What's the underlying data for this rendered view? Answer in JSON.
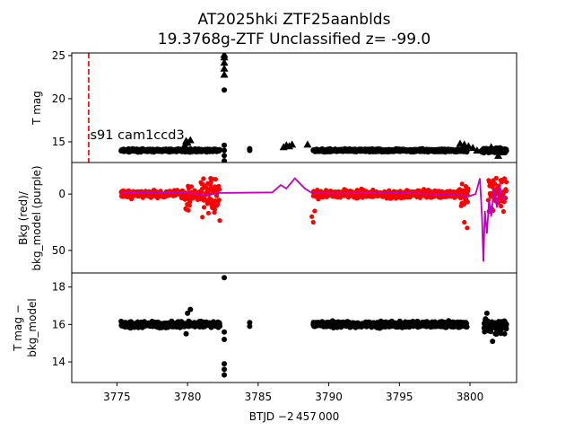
{
  "chart_data": {
    "type": "scatter",
    "title_line1": "AT2025hki  ZTF25aanblds",
    "title_line2": "19.3768g-ZTF Unclassified z= -99.0",
    "xlabel": "BTJD −2 457 000",
    "xlim": [
      3771.8,
      3803.3
    ],
    "xticks": [
      3775,
      3780,
      3785,
      3790,
      3795,
      3800
    ],
    "panels": [
      {
        "id": "tmag",
        "ylabel": "T mag",
        "ylim": [
          25.3,
          12.6
        ],
        "yticks": [
          15,
          20,
          25
        ],
        "annotation": {
          "text": "s91 cam1ccd3",
          "x": 3773.1,
          "y": 15.3
        },
        "vline": {
          "x": 3773.0,
          "color": "#e00000"
        },
        "band_segments": [
          {
            "x0": 3775.3,
            "x1": 3782.3,
            "y": 14.0,
            "spread": 0.22
          },
          {
            "x0": 3788.9,
            "x1": 3799.8,
            "y": 14.0,
            "spread": 0.22
          },
          {
            "x0": 3800.8,
            "x1": 3802.6,
            "y": 14.0,
            "spread": 0.35
          }
        ],
        "points": [
          [
            3779.8,
            14.6
          ],
          [
            3780.0,
            14.9
          ],
          [
            3780.2,
            15.2
          ],
          [
            3779.9,
            15.1
          ],
          [
            3782.6,
            11.8
          ],
          [
            3782.6,
            12.3
          ],
          [
            3782.6,
            12.8
          ],
          [
            3782.6,
            13.4
          ],
          [
            3782.6,
            14.0
          ],
          [
            3782.6,
            14.6
          ],
          [
            3782.6,
            21.0
          ],
          [
            3782.6,
            22.8
          ],
          [
            3782.6,
            23.5
          ],
          [
            3782.6,
            24.2
          ],
          [
            3782.6,
            24.8
          ],
          [
            3782.6,
            25.1
          ],
          [
            3784.4,
            14.0
          ],
          [
            3784.4,
            14.2
          ],
          [
            3786.8,
            14.4
          ],
          [
            3787.0,
            14.6
          ],
          [
            3787.2,
            14.5
          ],
          [
            3787.4,
            14.7
          ],
          [
            3788.5,
            14.7
          ],
          [
            3799.3,
            14.8
          ],
          [
            3799.6,
            14.7
          ],
          [
            3799.9,
            14.5
          ],
          [
            3800.2,
            14.3
          ],
          [
            3800.5,
            14.0
          ],
          [
            3801.5,
            14.4
          ],
          [
            3802.0,
            13.4
          ],
          [
            3802.3,
            13.8
          ]
        ],
        "marker_color": "#000000"
      },
      {
        "id": "bkg",
        "ylabel_line1": "Bkg (red)/",
        "ylabel_line2": "bkg_model (purple)",
        "ylim": [
          -28,
          70
        ],
        "yticks": [
          0,
          50
        ],
        "bkg_segments": [
          {
            "x0": 3775.3,
            "x1": 3779.8,
            "y": 0,
            "spread": 5
          },
          {
            "x0": 3779.8,
            "x1": 3780.3,
            "y": 0,
            "spread": 26
          },
          {
            "x0": 3780.3,
            "x1": 3780.9,
            "y": 0,
            "spread": 7
          },
          {
            "x0": 3780.9,
            "x1": 3782.3,
            "y": 0,
            "spread": 26
          },
          {
            "x0": 3788.9,
            "x1": 3799.2,
            "y": 0,
            "spread": 5
          },
          {
            "x0": 3799.2,
            "x1": 3799.9,
            "y": 0,
            "spread": 14
          },
          {
            "x0": 3801.3,
            "x1": 3802.6,
            "y": 0,
            "spread": 25
          }
        ],
        "bkg_points": [
          [
            3788.8,
            20
          ],
          [
            3788.9,
            25
          ],
          [
            3789.0,
            15
          ],
          [
            3799.6,
            25
          ],
          [
            3799.8,
            30
          ]
        ],
        "bkg_color": "#ff0000",
        "model_line": [
          [
            3775.3,
            -1
          ],
          [
            3776.5,
            -1.5
          ],
          [
            3778.0,
            -1
          ],
          [
            3779.5,
            -1.5
          ],
          [
            3780.5,
            -0.5
          ],
          [
            3781.0,
            1
          ],
          [
            3781.5,
            0.5
          ],
          [
            3782.3,
            -1
          ],
          [
            3786.0,
            -1.5
          ],
          [
            3786.6,
            -8
          ],
          [
            3787.0,
            -5
          ],
          [
            3787.6,
            -14
          ],
          [
            3788.3,
            -5
          ],
          [
            3788.8,
            -1
          ],
          [
            3790.0,
            -0.5
          ],
          [
            3795.0,
            -1
          ],
          [
            3798.0,
            0
          ],
          [
            3799.4,
            1
          ],
          [
            3799.9,
            2
          ],
          [
            3800.4,
            0
          ],
          [
            3800.7,
            -14
          ],
          [
            3800.85,
            20
          ],
          [
            3800.95,
            60
          ],
          [
            3801.05,
            15
          ],
          [
            3801.2,
            35
          ],
          [
            3801.35,
            5
          ],
          [
            3801.5,
            20
          ],
          [
            3801.7,
            -5
          ],
          [
            3801.9,
            12
          ],
          [
            3802.1,
            -8
          ],
          [
            3802.3,
            5
          ],
          [
            3802.5,
            2
          ]
        ],
        "model_color": "#bf00bf"
      },
      {
        "id": "diff",
        "ylabel_line1": "T mag −",
        "ylabel_line2": "bkg_model",
        "ylim": [
          18.75,
          12.9
        ],
        "yticks": [
          14,
          16,
          18
        ],
        "band_segments": [
          {
            "x0": 3775.3,
            "x1": 3782.3,
            "y": 16.0,
            "spread": 0.22
          },
          {
            "x0": 3788.9,
            "x1": 3799.8,
            "y": 16.0,
            "spread": 0.22
          },
          {
            "x0": 3801.0,
            "x1": 3802.6,
            "y": 15.9,
            "spread": 0.45
          }
        ],
        "points": [
          [
            3782.6,
            13.3
          ],
          [
            3782.6,
            13.6
          ],
          [
            3782.6,
            13.9
          ],
          [
            3782.6,
            15.2
          ],
          [
            3782.6,
            15.6
          ],
          [
            3782.6,
            18.5
          ],
          [
            3784.4,
            15.9
          ],
          [
            3784.4,
            16.1
          ],
          [
            3779.9,
            15.5
          ],
          [
            3780.0,
            16.6
          ],
          [
            3780.2,
            16.8
          ],
          [
            3801.6,
            15.1
          ],
          [
            3801.8,
            15.5
          ],
          [
            3801.1,
            16.3
          ],
          [
            3801.2,
            16.6
          ]
        ],
        "marker_color": "#000000"
      }
    ]
  }
}
